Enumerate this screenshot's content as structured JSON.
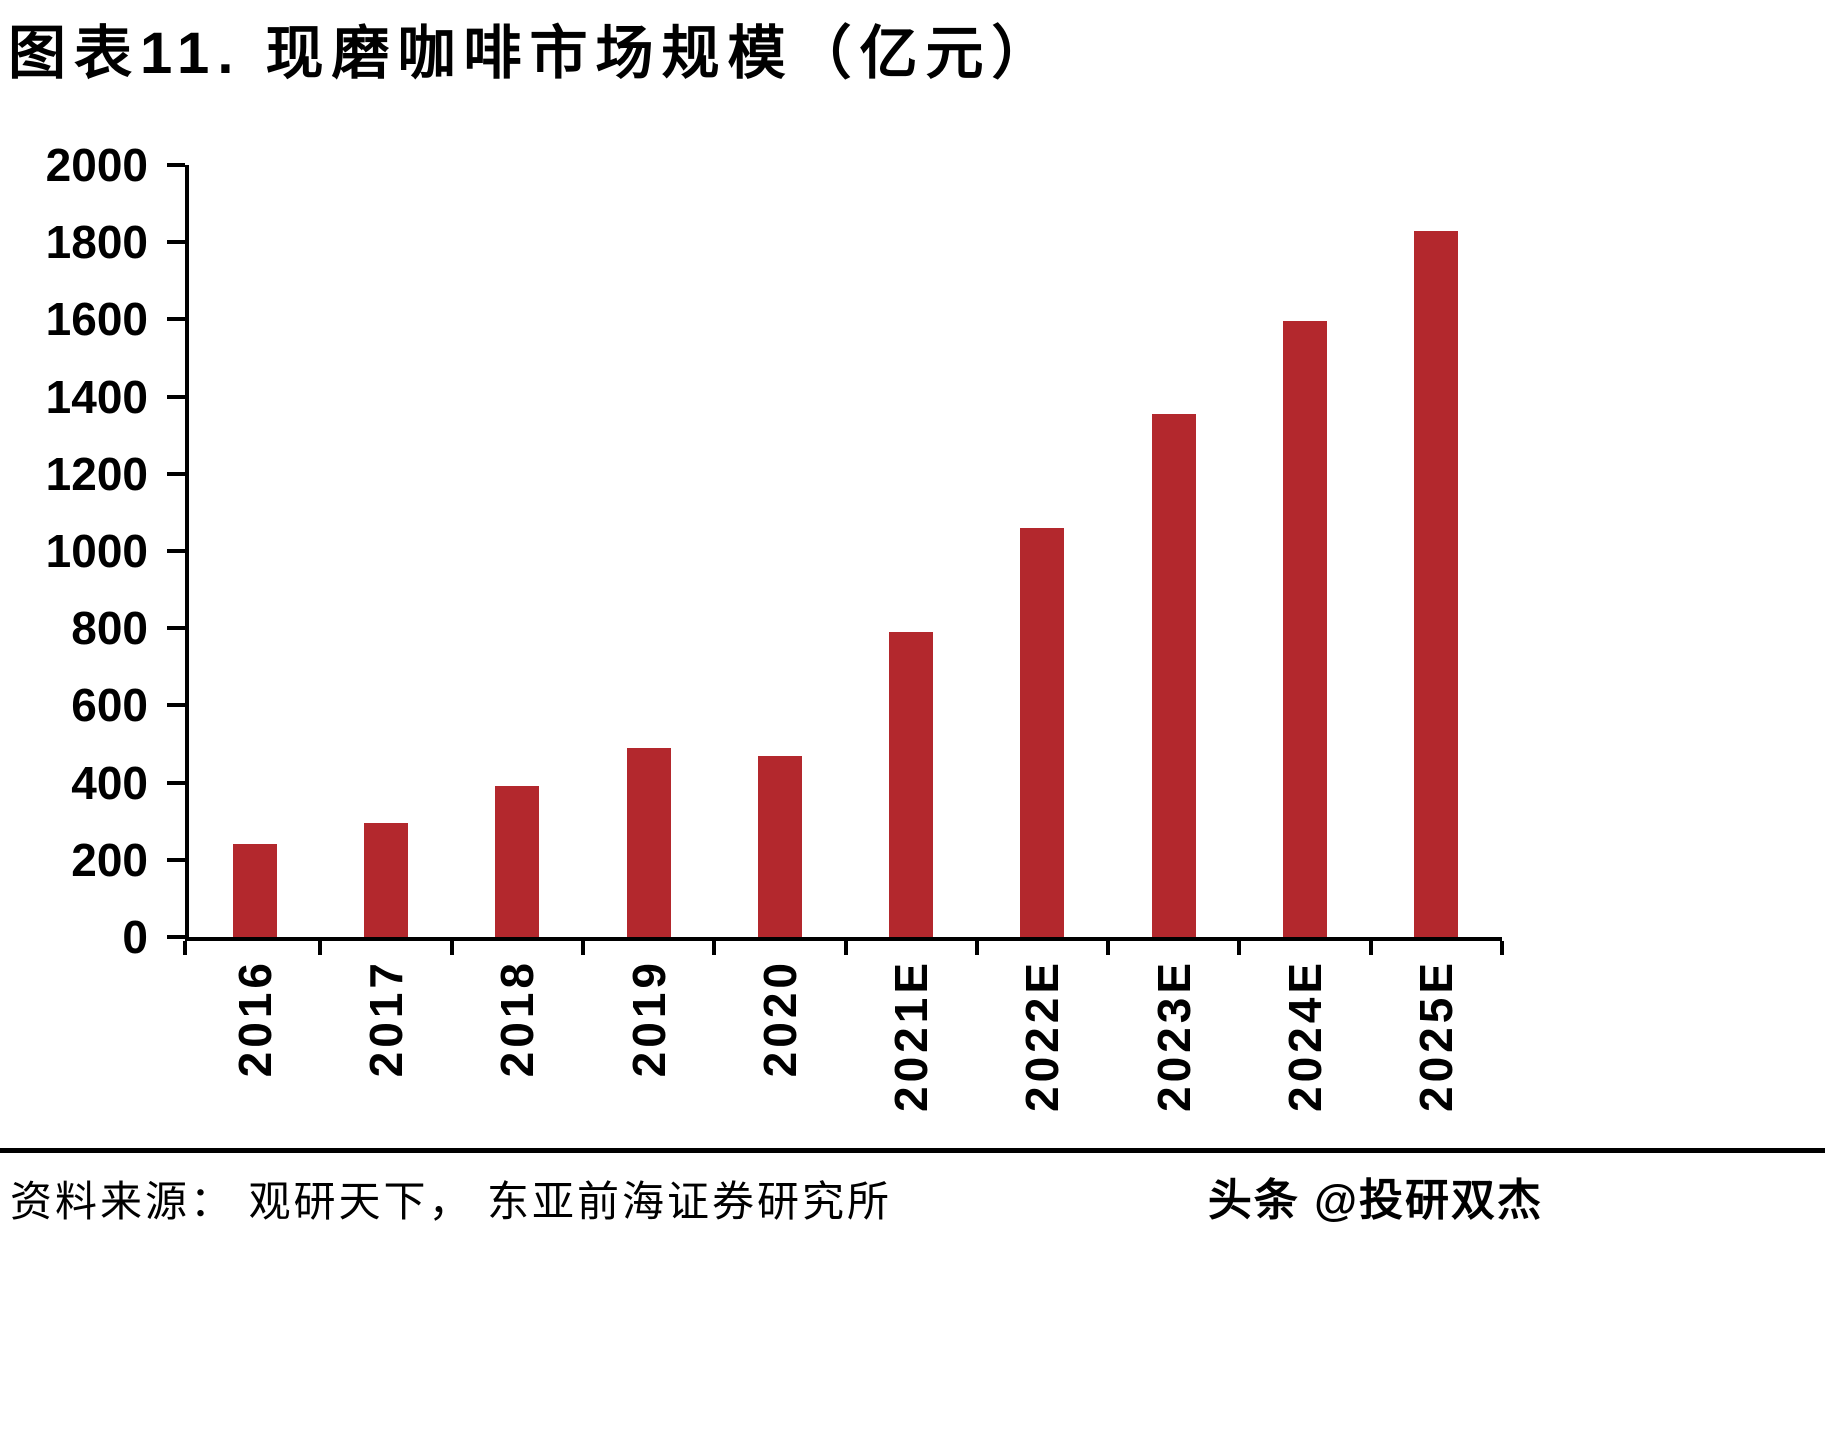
{
  "title": "图表11.  现磨咖啡市场规模（亿元）",
  "footer": {
    "source": "资料来源： 观研天下， 东亚前海证券研究所",
    "watermark": "头条 @投研双杰"
  },
  "chart_data": {
    "type": "bar",
    "title": "现磨咖啡市场规模（亿元）",
    "categories": [
      "2016",
      "2017",
      "2018",
      "2019",
      "2020",
      "2021E",
      "2022E",
      "2023E",
      "2024E",
      "2025E"
    ],
    "values": [
      240,
      295,
      392,
      489,
      470,
      790,
      1060,
      1355,
      1595,
      1830
    ],
    "xlabel": "",
    "ylabel": "",
    "ylim": [
      0,
      2000
    ],
    "yticks": [
      0,
      200,
      400,
      600,
      800,
      1000,
      1200,
      1400,
      1600,
      1800,
      2000
    ],
    "bar_color": "#b3282d",
    "axis_color": "#000000",
    "grid": false,
    "legend": false
  }
}
